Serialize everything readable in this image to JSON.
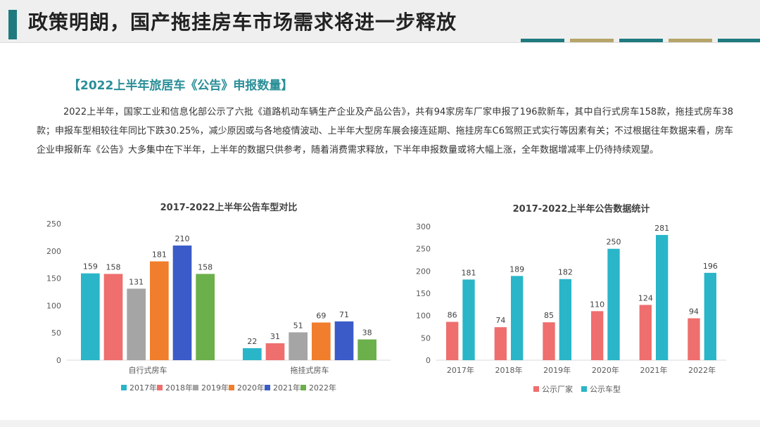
{
  "header": {
    "title": "政策明朗，国产拖挂房车市场需求将进一步释放"
  },
  "colors": {
    "accent": "#1f7a7f",
    "stripe_teal": "#1f7a7f",
    "stripe_gold": "#b6a46a",
    "section_title": "#2a8e97"
  },
  "section": {
    "title": "【2022上半年旅居车《公告》申报数量】"
  },
  "paragraph": "2022上半年，国家工业和信息化部公示了六批《道路机动车辆生产企业及产品公告》，共有94家房车厂家申报了196款新车，其中自行式房车158款，拖挂式房车38款；申报车型相较往年同比下跌30.25%，减少原因或与各地疫情波动、上半年大型房车展会接连延期、拖挂房车C6驾照正式实行等因素有关；不过根据往年数据来看，房车企业申报新车《公告》大多集中在下半年，上半年的数据只供参考，随着消费需求释放，下半年申报数量或将大幅上涨，全年数据增减率上仍待持续观望。",
  "chart_data": [
    {
      "type": "bar",
      "title": "2017-2022上半年公告车型对比",
      "categories": [
        "自行式房车",
        "拖挂式房车"
      ],
      "ylim": [
        0,
        250
      ],
      "yticks": [
        0,
        50,
        100,
        150,
        200,
        250
      ],
      "legend_position": "bottom",
      "series": [
        {
          "name": "2017年",
          "color": "#2ab5c8",
          "values": [
            159,
            22
          ]
        },
        {
          "name": "2018年",
          "color": "#ef6e6e",
          "values": [
            158,
            31
          ]
        },
        {
          "name": "2019年",
          "color": "#a5a5a5",
          "values": [
            131,
            51
          ]
        },
        {
          "name": "2020年",
          "color": "#f07e2c",
          "values": [
            181,
            69
          ]
        },
        {
          "name": "2021年",
          "color": "#3a5bc8",
          "values": [
            210,
            71
          ]
        },
        {
          "name": "2022年",
          "color": "#6bb04a",
          "values": [
            158,
            38
          ]
        }
      ]
    },
    {
      "type": "bar",
      "title": "2017-2022上半年公告数据统计",
      "categories": [
        "2017年",
        "2018年",
        "2019年",
        "2020年",
        "2021年",
        "2022年"
      ],
      "ylim": [
        0,
        300
      ],
      "yticks": [
        0,
        50,
        100,
        150,
        200,
        250,
        300
      ],
      "legend_position": "bottom",
      "series": [
        {
          "name": "公示厂家",
          "color": "#ef6e6e",
          "values": [
            86,
            74,
            85,
            110,
            124,
            94
          ]
        },
        {
          "name": "公示车型",
          "color": "#2ab5c8",
          "values": [
            181,
            189,
            182,
            250,
            281,
            196
          ]
        }
      ]
    }
  ]
}
